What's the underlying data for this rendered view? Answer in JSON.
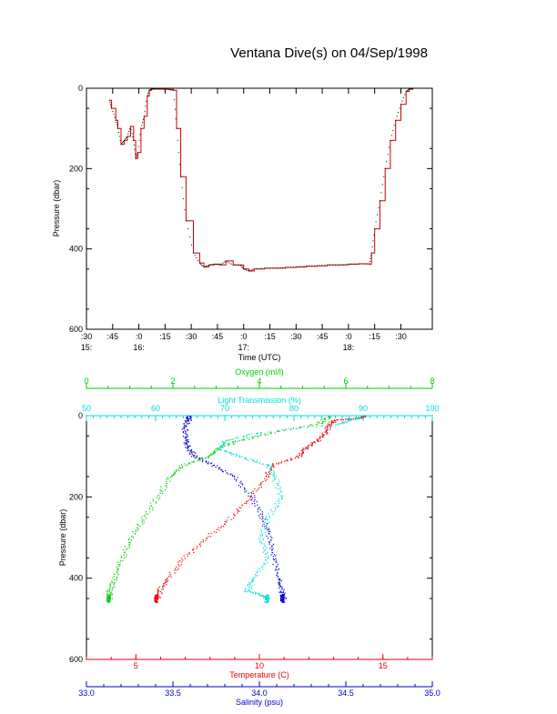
{
  "title": "Ventana Dive(s) on 04/Sep/1998",
  "colors": {
    "axis": "#000000",
    "pressure_trace": "#cc0000",
    "temperature": "#ee0000",
    "salinity": "#0000cc",
    "oxygen": "#00cc00",
    "light_transmission": "#00dddd"
  },
  "chart_data": [
    {
      "type": "line",
      "name": "pressure-vs-time",
      "ylabel": "Pressure (dbar)",
      "xlabel": "Time (UTC)",
      "ylim": [
        600,
        0
      ],
      "yticks": [
        "0",
        "200",
        "400",
        "600"
      ],
      "xlim": [
        15.5,
        18.8
      ],
      "xticks_minute": [
        ":30",
        ":45",
        ":0",
        ":15",
        ":30",
        ":45",
        ":0",
        ":15",
        ":30",
        ":45",
        ":0",
        ":15",
        ":30"
      ],
      "xticks_hour": [
        "15:",
        "16:",
        "17:",
        "18:"
      ],
      "x_hours": [
        15.72,
        15.74,
        15.78,
        15.8,
        15.83,
        15.86,
        15.89,
        15.92,
        15.95,
        15.97,
        15.99,
        16.02,
        16.05,
        16.08,
        16.1,
        16.12,
        16.14,
        16.2,
        16.28,
        16.33,
        16.36,
        16.4,
        16.45,
        16.52,
        16.58,
        16.62,
        16.67,
        16.72,
        16.78,
        16.83,
        16.9,
        16.97,
        17.0,
        17.05,
        17.1,
        17.2,
        17.3,
        17.4,
        17.5,
        17.6,
        17.7,
        17.8,
        17.9,
        18.0,
        18.1,
        18.2,
        18.22,
        18.25,
        18.3,
        18.35,
        18.4,
        18.45,
        18.5,
        18.55,
        18.58,
        18.62
      ],
      "pressure_dbar": [
        30,
        50,
        80,
        100,
        140,
        130,
        120,
        95,
        130,
        175,
        160,
        100,
        70,
        20,
        5,
        2,
        2,
        2,
        3,
        5,
        100,
        220,
        330,
        410,
        435,
        445,
        440,
        438,
        440,
        430,
        440,
        440,
        450,
        455,
        450,
        448,
        448,
        446,
        445,
        443,
        442,
        440,
        440,
        438,
        437,
        438,
        410,
        350,
        280,
        200,
        130,
        80,
        40,
        8,
        2,
        2
      ]
    },
    {
      "type": "scatter",
      "name": "profiles-vs-pressure",
      "ylabel": "Pressure (dbar)",
      "ylim": [
        600,
        0
      ],
      "yticks": [
        "0",
        "200",
        "400",
        "600"
      ],
      "axes": {
        "oxygen": {
          "label": "Oxygen (ml/l)",
          "lim": [
            0,
            8
          ],
          "ticks": [
            "0",
            "2",
            "4",
            "6",
            "8"
          ]
        },
        "light_transmission": {
          "label": "Light Transmission (%)",
          "lim": [
            50,
            100
          ],
          "ticks": [
            "50",
            "60",
            "70",
            "80",
            "90",
            "100"
          ]
        },
        "temperature": {
          "label": "Temperature (C)",
          "lim": [
            3,
            17
          ],
          "ticks": [
            "5",
            "10",
            "15"
          ]
        },
        "salinity": {
          "label": "Salinity (psu)",
          "lim": [
            33.0,
            35.0
          ],
          "ticks": [
            "33.0",
            "33.5",
            "34.0",
            "34.5",
            "35.0"
          ]
        }
      },
      "series": [
        {
          "key": "temperature",
          "pressure_dbar": [
            0,
            5,
            10,
            20,
            40,
            60,
            80,
            100,
            120,
            150,
            200,
            250,
            300,
            350,
            400,
            430,
            450
          ],
          "values": [
            14.2,
            14.0,
            13.0,
            12.8,
            12.6,
            12.3,
            11.8,
            11.5,
            10.5,
            10.2,
            9.6,
            8.8,
            7.8,
            6.9,
            6.2,
            5.9,
            5.8
          ]
        },
        {
          "key": "salinity",
          "pressure_dbar": [
            0,
            10,
            30,
            60,
            80,
            100,
            120,
            150,
            200,
            250,
            300,
            350,
            400,
            430,
            450
          ],
          "values": [
            33.58,
            33.58,
            33.56,
            33.57,
            33.58,
            33.62,
            33.72,
            33.85,
            33.95,
            34.01,
            34.05,
            34.08,
            34.1,
            34.12,
            34.13
          ]
        },
        {
          "key": "oxygen",
          "pressure_dbar": [
            0,
            20,
            40,
            60,
            80,
            100,
            120,
            150,
            200,
            250,
            300,
            350,
            400,
            430,
            450
          ],
          "values": [
            5.6,
            5.3,
            4.3,
            3.5,
            3.0,
            2.8,
            2.2,
            1.9,
            1.6,
            1.3,
            1.0,
            0.8,
            0.6,
            0.5,
            0.5
          ]
        },
        {
          "key": "light_transmission",
          "pressure_dbar": [
            0,
            10,
            20,
            40,
            60,
            80,
            100,
            120,
            150,
            200,
            250,
            300,
            350,
            400,
            430,
            440,
            450
          ],
          "values": [
            90,
            88,
            86,
            75,
            70,
            69,
            72,
            76,
            77,
            78,
            76,
            75,
            76,
            74,
            73,
            75,
            76
          ]
        }
      ]
    }
  ]
}
